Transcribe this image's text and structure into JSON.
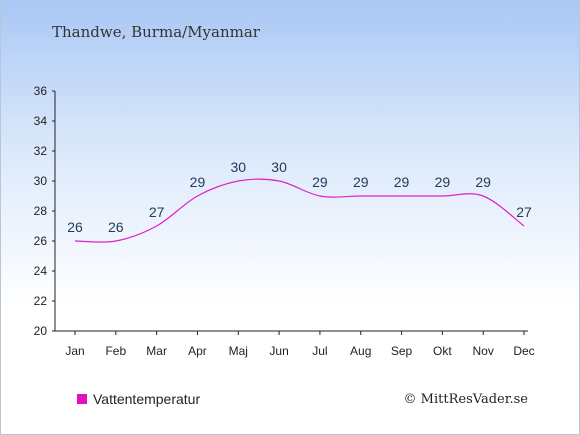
{
  "chart_data": {
    "type": "line",
    "title": "Thandwe, Burma/Myanmar",
    "categories": [
      "Jan",
      "Feb",
      "Mar",
      "Apr",
      "Maj",
      "Jun",
      "Jul",
      "Aug",
      "Sep",
      "Okt",
      "Nov",
      "Dec"
    ],
    "series": [
      {
        "name": "Vattentemperatur",
        "color": "#e020c8",
        "values": [
          26,
          26,
          27,
          29,
          30,
          30,
          29,
          29,
          29,
          29,
          29,
          27
        ],
        "labels": [
          "26",
          "26",
          "27",
          "29",
          "30",
          "30",
          "29",
          "29",
          "29",
          "29",
          "29",
          "27"
        ]
      }
    ],
    "ylim": [
      20,
      36
    ],
    "yticks": [
      20,
      22,
      24,
      26,
      28,
      30,
      32,
      34,
      36
    ],
    "xlabel": "",
    "ylabel": "",
    "grid": false,
    "legend": "bottom-left"
  },
  "legend": {
    "label": "Vattentemperatur",
    "swatch_color": "#e010c0"
  },
  "credit": "© MittResVader.se"
}
